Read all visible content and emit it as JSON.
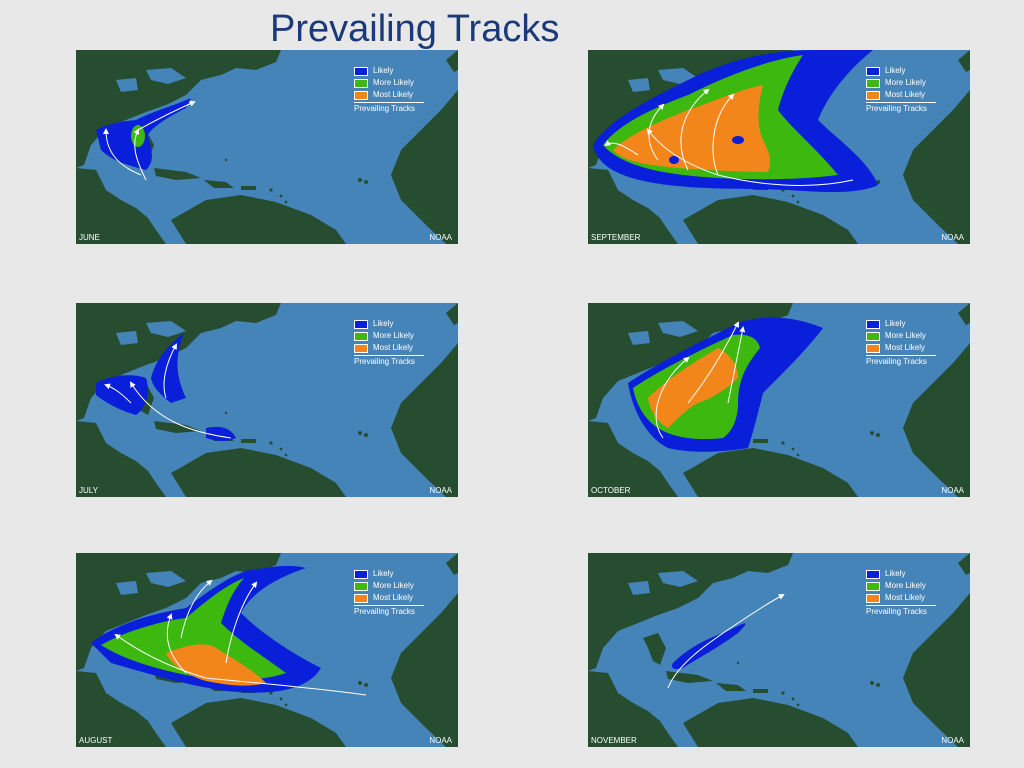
{
  "title": "Prevailing Tracks",
  "legend": {
    "likely": "Likely",
    "more_likely": "More Likely",
    "most_likely": "Most Likely",
    "tracks": "Prevailing Tracks"
  },
  "colors": {
    "ocean": "#4484b9",
    "land": "#274d30",
    "likely": "#0a1fd9",
    "more_likely": "#3cb80f",
    "most_likely": "#f2861a",
    "track": "#ffffff",
    "title": "#1b3a7a"
  },
  "panels": [
    {
      "month": "JUNE",
      "credit": "NOAA"
    },
    {
      "month": "SEPTEMBER",
      "credit": "NOAA"
    },
    {
      "month": "JULY",
      "credit": "NOAA"
    },
    {
      "month": "OCTOBER",
      "credit": "NOAA"
    },
    {
      "month": "AUGUST",
      "credit": "NOAA"
    },
    {
      "month": "NOVEMBER",
      "credit": "NOAA"
    }
  ]
}
